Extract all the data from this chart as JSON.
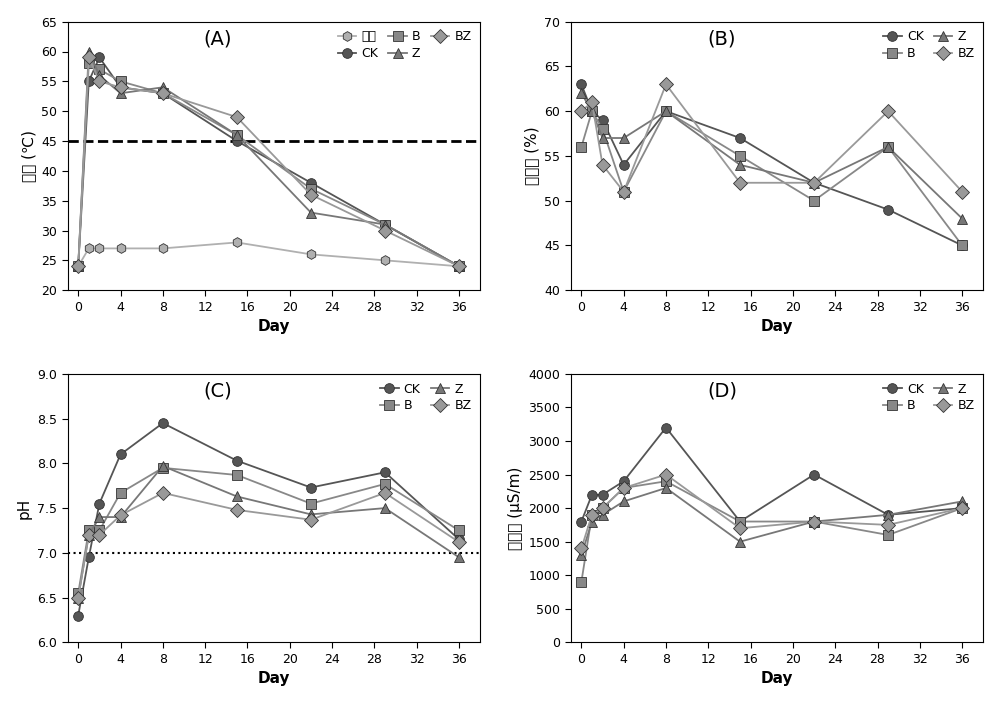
{
  "A": {
    "title": "(A)",
    "ylabel": "温度 (℃)",
    "xlabel": "Day",
    "ylim": [
      20,
      65
    ],
    "yticks": [
      20,
      25,
      30,
      35,
      40,
      45,
      50,
      55,
      60,
      65
    ],
    "xticks": [
      0,
      4,
      8,
      12,
      16,
      20,
      24,
      28,
      32,
      36
    ],
    "hline": 45,
    "hline_style": "dashed",
    "series_order": [
      "室温",
      "CK",
      "B",
      "Z",
      "BZ"
    ],
    "legend_ncol": 3,
    "legend_order": [
      "室温",
      "CK",
      "B",
      "Z",
      "BZ"
    ],
    "series": {
      "室温": {
        "x": [
          0,
          1,
          2,
          4,
          8,
          15,
          22,
          29,
          36
        ],
        "y": [
          24,
          27,
          27,
          27,
          27,
          28,
          26,
          25,
          24
        ],
        "marker": "h",
        "color": "#b0b0b0"
      },
      "CK": {
        "x": [
          0,
          1,
          2,
          4,
          8,
          15,
          22,
          29,
          36
        ],
        "y": [
          24,
          55,
          59,
          54,
          53,
          45,
          38,
          31,
          24
        ],
        "marker": "o",
        "color": "#555555"
      },
      "B": {
        "x": [
          0,
          1,
          2,
          4,
          8,
          15,
          22,
          29,
          36
        ],
        "y": [
          24,
          58,
          57,
          55,
          53,
          46,
          37,
          31,
          24
        ],
        "marker": "s",
        "color": "#888888"
      },
      "Z": {
        "x": [
          0,
          1,
          2,
          4,
          8,
          15,
          22,
          29,
          36
        ],
        "y": [
          24,
          60,
          56,
          53,
          54,
          46,
          33,
          31,
          24
        ],
        "marker": "^",
        "color": "#777777"
      },
      "BZ": {
        "x": [
          0,
          1,
          2,
          4,
          8,
          15,
          22,
          29,
          36
        ],
        "y": [
          24,
          59,
          55,
          54,
          53,
          49,
          36,
          30,
          24
        ],
        "marker": "D",
        "color": "#999999"
      }
    }
  },
  "B": {
    "title": "(B)",
    "ylabel": "含水率 (%)",
    "xlabel": "Day",
    "ylim": [
      40,
      70
    ],
    "yticks": [
      40,
      45,
      50,
      55,
      60,
      65,
      70
    ],
    "xticks": [
      0,
      4,
      8,
      12,
      16,
      20,
      24,
      28,
      32,
      36
    ],
    "series_order": [
      "CK",
      "B",
      "Z",
      "BZ"
    ],
    "legend_ncol": 2,
    "legend_order": [
      "CK",
      "B",
      "Z",
      "BZ"
    ],
    "series": {
      "CK": {
        "x": [
          0,
          1,
          2,
          4,
          8,
          15,
          22,
          29,
          36
        ],
        "y": [
          63,
          60,
          59,
          54,
          60,
          57,
          52,
          49,
          45
        ],
        "marker": "o",
        "color": "#555555"
      },
      "B": {
        "x": [
          0,
          1,
          2,
          4,
          8,
          15,
          22,
          29,
          36
        ],
        "y": [
          56,
          60,
          58,
          51,
          60,
          55,
          50,
          56,
          45
        ],
        "marker": "s",
        "color": "#888888"
      },
      "Z": {
        "x": [
          0,
          1,
          2,
          4,
          8,
          15,
          22,
          29,
          36
        ],
        "y": [
          62,
          60,
          57,
          57,
          60,
          54,
          52,
          56,
          48
        ],
        "marker": "^",
        "color": "#777777"
      },
      "BZ": {
        "x": [
          0,
          1,
          2,
          4,
          8,
          15,
          22,
          29,
          36
        ],
        "y": [
          60,
          61,
          54,
          51,
          63,
          52,
          52,
          60,
          51
        ],
        "marker": "D",
        "color": "#999999"
      }
    }
  },
  "C": {
    "title": "(C)",
    "ylabel": "pH",
    "xlabel": "Day",
    "ylim": [
      6.0,
      9.0
    ],
    "yticks": [
      6.0,
      6.5,
      7.0,
      7.5,
      8.0,
      8.5,
      9.0
    ],
    "xticks": [
      0,
      4,
      8,
      12,
      16,
      20,
      24,
      28,
      32,
      36
    ],
    "hline": 7.0,
    "hline_style": "dotted",
    "series_order": [
      "CK",
      "B",
      "Z",
      "BZ"
    ],
    "legend_ncol": 2,
    "legend_order": [
      "CK",
      "B",
      "Z",
      "BZ"
    ],
    "series": {
      "CK": {
        "x": [
          0,
          1,
          2,
          4,
          8,
          15,
          22,
          29,
          36
        ],
        "y": [
          6.3,
          6.95,
          7.55,
          8.1,
          8.45,
          8.03,
          7.73,
          7.9,
          7.15
        ],
        "marker": "o",
        "color": "#555555"
      },
      "B": {
        "x": [
          0,
          1,
          2,
          4,
          8,
          15,
          22,
          29,
          36
        ],
        "y": [
          6.55,
          7.25,
          7.25,
          7.67,
          7.95,
          7.87,
          7.55,
          7.77,
          7.25
        ],
        "marker": "s",
        "color": "#888888"
      },
      "Z": {
        "x": [
          0,
          1,
          2,
          4,
          8,
          15,
          22,
          29,
          36
        ],
        "y": [
          6.5,
          7.2,
          7.4,
          7.4,
          7.97,
          7.63,
          7.43,
          7.5,
          6.95
        ],
        "marker": "^",
        "color": "#777777"
      },
      "BZ": {
        "x": [
          0,
          1,
          2,
          4,
          8,
          15,
          22,
          29,
          36
        ],
        "y": [
          6.5,
          7.2,
          7.2,
          7.42,
          7.67,
          7.48,
          7.37,
          7.67,
          7.12
        ],
        "marker": "D",
        "color": "#999999"
      }
    }
  },
  "D": {
    "title": "(D)",
    "ylabel": "电导率 (μS/m)",
    "xlabel": "Day",
    "ylim": [
      0,
      4000
    ],
    "yticks": [
      0,
      500,
      1000,
      1500,
      2000,
      2500,
      3000,
      3500,
      4000
    ],
    "xticks": [
      0,
      4,
      8,
      12,
      16,
      20,
      24,
      28,
      32,
      36
    ],
    "series_order": [
      "CK",
      "B",
      "Z",
      "BZ"
    ],
    "legend_ncol": 2,
    "legend_order": [
      "CK",
      "B",
      "Z",
      "BZ"
    ],
    "series": {
      "CK": {
        "x": [
          0,
          1,
          2,
          4,
          8,
          15,
          22,
          29,
          36
        ],
        "y": [
          1800,
          2200,
          2200,
          2400,
          3200,
          1800,
          2500,
          1900,
          2000
        ],
        "marker": "o",
        "color": "#555555"
      },
      "B": {
        "x": [
          0,
          1,
          2,
          4,
          8,
          15,
          22,
          29,
          36
        ],
        "y": [
          900,
          1900,
          2000,
          2300,
          2400,
          1800,
          1800,
          1600,
          2000
        ],
        "marker": "s",
        "color": "#888888"
      },
      "Z": {
        "x": [
          0,
          1,
          2,
          4,
          8,
          15,
          22,
          29,
          36
        ],
        "y": [
          1300,
          1800,
          1900,
          2100,
          2300,
          1500,
          1800,
          1900,
          2100
        ],
        "marker": "^",
        "color": "#777777"
      },
      "BZ": {
        "x": [
          0,
          1,
          2,
          4,
          8,
          15,
          22,
          29,
          36
        ],
        "y": [
          1400,
          1900,
          2000,
          2300,
          2500,
          1700,
          1800,
          1750,
          2000
        ],
        "marker": "D",
        "color": "#999999"
      }
    }
  },
  "marker_size": 7,
  "line_width": 1.3,
  "font_size_label": 11,
  "font_size_tick": 9,
  "font_size_legend": 9,
  "font_size_title": 14
}
